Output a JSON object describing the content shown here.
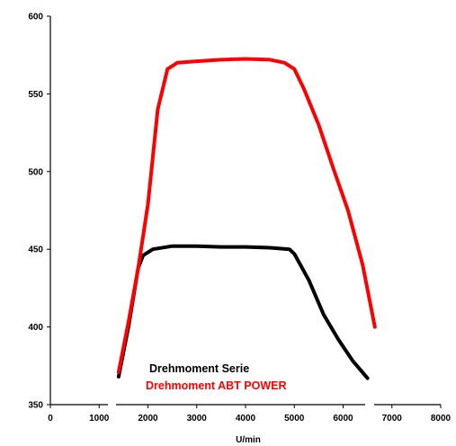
{
  "chart_data": {
    "type": "line",
    "xlabel": "U/min",
    "ylabel": "",
    "xlim": [
      0,
      8000
    ],
    "ylim": [
      350,
      600
    ],
    "xticks": [
      0,
      1000,
      2000,
      3000,
      4000,
      5000,
      6000,
      7000,
      8000
    ],
    "yticks": [
      350,
      400,
      450,
      500,
      550,
      600
    ],
    "grid": false,
    "legend_placement": "bottom-center",
    "series": [
      {
        "name": "Drehmoment Serie",
        "color": "#000000",
        "points": [
          [
            1400,
            368
          ],
          [
            1600,
            400
          ],
          [
            1800,
            438
          ],
          [
            1900,
            446
          ],
          [
            2100,
            450
          ],
          [
            2500,
            452
          ],
          [
            3000,
            452
          ],
          [
            3500,
            451.5
          ],
          [
            4000,
            451.5
          ],
          [
            4500,
            451
          ],
          [
            4900,
            450
          ],
          [
            5000,
            447
          ],
          [
            5300,
            430
          ],
          [
            5600,
            408
          ],
          [
            5900,
            392
          ],
          [
            6200,
            378
          ],
          [
            6500,
            367
          ]
        ]
      },
      {
        "name": "Drehmoment ABT POWER",
        "color": "#ff0000",
        "points": [
          [
            1400,
            371
          ],
          [
            1600,
            403
          ],
          [
            1800,
            438
          ],
          [
            2000,
            479
          ],
          [
            2200,
            540
          ],
          [
            2400,
            566
          ],
          [
            2600,
            570
          ],
          [
            3000,
            571
          ],
          [
            3500,
            572
          ],
          [
            4000,
            572.5
          ],
          [
            4500,
            572
          ],
          [
            4800,
            570
          ],
          [
            5000,
            566
          ],
          [
            5200,
            553
          ],
          [
            5500,
            530
          ],
          [
            5800,
            502
          ],
          [
            6100,
            475
          ],
          [
            6400,
            440
          ],
          [
            6650,
            400
          ]
        ]
      }
    ]
  }
}
